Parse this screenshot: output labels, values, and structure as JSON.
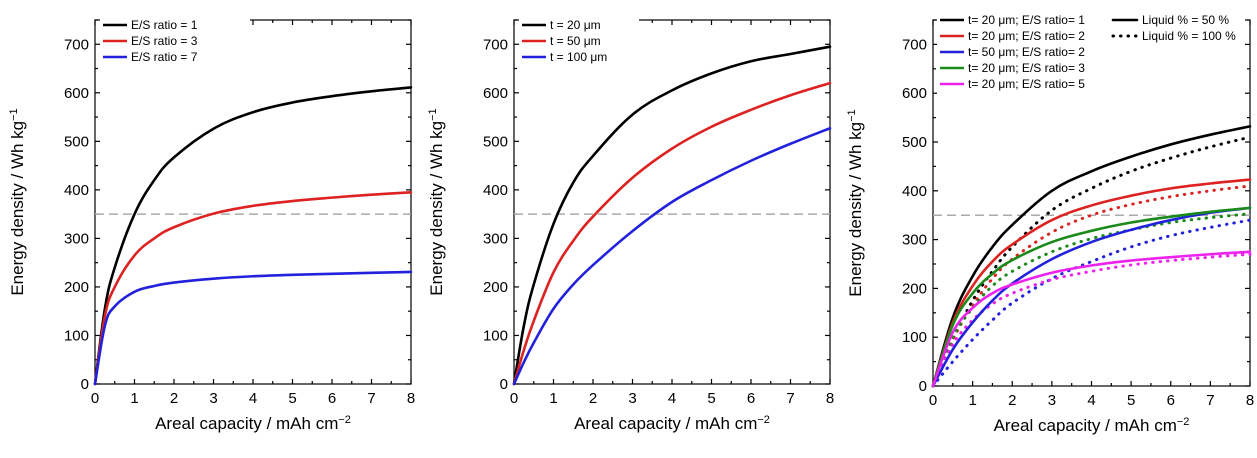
{
  "chart_data": [
    {
      "type": "line",
      "xlabel": "Areal capacity / mAh cm",
      "xlabel_sup": "−2",
      "ylabel": "Energy density / Wh kg",
      "ylabel_sup": "−1",
      "xlim": [
        0,
        8
      ],
      "ylim": [
        0,
        750
      ],
      "xticks": [
        "0",
        "1",
        "2",
        "3",
        "4",
        "5",
        "6",
        "7",
        "8"
      ],
      "yticks": [
        "0",
        "100",
        "200",
        "300",
        "400",
        "500",
        "600",
        "700"
      ],
      "reference_line": 350,
      "legend_position": "top-left",
      "series": [
        {
          "name": "E/S ratio = 1",
          "color": "#000000",
          "style": "solid",
          "x": [
            0,
            0.25,
            0.5,
            1,
            1.5,
            2,
            3,
            4,
            5,
            6,
            7,
            8
          ],
          "y": [
            0,
            155,
            240,
            350,
            420,
            467,
            526,
            560,
            580,
            593,
            603,
            611
          ]
        },
        {
          "name": "E/S ratio = 3",
          "color": "#dd2222",
          "style": "solid",
          "x": [
            0,
            0.25,
            0.5,
            1,
            1.5,
            2,
            3,
            4,
            5,
            6,
            7,
            8
          ],
          "y": [
            0,
            140,
            200,
            265,
            300,
            323,
            351,
            367,
            377,
            384,
            390,
            395
          ]
        },
        {
          "name": "E/S ratio = 7",
          "color": "#2222dd",
          "style": "solid",
          "x": [
            0,
            0.25,
            0.5,
            1,
            1.5,
            2,
            3,
            4,
            5,
            6,
            7,
            8
          ],
          "y": [
            0,
            120,
            160,
            190,
            202,
            209,
            217,
            222,
            225,
            227,
            229,
            231
          ]
        }
      ]
    },
    {
      "type": "line",
      "xlabel": "Areal capacity / mAh cm",
      "xlabel_sup": "−2",
      "ylabel": "Energy density / Wh kg",
      "ylabel_sup": "−1",
      "xlim": [
        0,
        8
      ],
      "ylim": [
        0,
        750
      ],
      "xticks": [
        "0",
        "1",
        "2",
        "3",
        "4",
        "5",
        "6",
        "7",
        "8"
      ],
      "yticks": [
        "0",
        "100",
        "200",
        "300",
        "400",
        "500",
        "600",
        "700"
      ],
      "reference_line": 350,
      "legend_position": "top-left",
      "series": [
        {
          "name": "t = 20 μm",
          "color": "#000000",
          "style": "solid",
          "x": [
            0,
            0.25,
            0.5,
            1,
            1.5,
            2,
            3,
            4,
            5,
            6,
            7,
            8
          ],
          "y": [
            0,
            120,
            205,
            330,
            415,
            470,
            555,
            605,
            640,
            665,
            680,
            695
          ]
        },
        {
          "name": "t = 50 μm",
          "color": "#dd2222",
          "style": "solid",
          "x": [
            0,
            0.25,
            0.5,
            1,
            1.5,
            2,
            3,
            4,
            5,
            6,
            7,
            8
          ],
          "y": [
            0,
            70,
            130,
            230,
            295,
            345,
            425,
            485,
            530,
            565,
            595,
            620
          ]
        },
        {
          "name": "t = 100 μm",
          "color": "#2222dd",
          "style": "solid",
          "x": [
            0,
            0.25,
            0.5,
            1,
            1.5,
            2,
            3,
            4,
            5,
            6,
            7,
            8
          ],
          "y": [
            0,
            45,
            85,
            155,
            205,
            245,
            315,
            375,
            420,
            460,
            495,
            527
          ]
        }
      ]
    },
    {
      "type": "line",
      "xlabel": "Areal capacity / mAh cm",
      "xlabel_sup": "−2",
      "ylabel": "Energy density / Wh kg",
      "ylabel_sup": "−1",
      "xlim": [
        0,
        8
      ],
      "ylim": [
        0,
        750
      ],
      "xticks": [
        "0",
        "1",
        "2",
        "3",
        "4",
        "5",
        "6",
        "7",
        "8"
      ],
      "yticks": [
        "0",
        "100",
        "200",
        "300",
        "400",
        "500",
        "600",
        "700"
      ],
      "reference_line": 350,
      "legend_position": "top-left",
      "style_legend": [
        {
          "name": "Liquid % = 50 %",
          "style": "solid"
        },
        {
          "name": "Liquid % = 100 %",
          "style": "dotted"
        }
      ],
      "series": [
        {
          "name": "t= 20 μm; E/S ratio= 1",
          "color": "#000000",
          "style": "solid",
          "x": [
            0,
            0.5,
            1,
            1.5,
            2,
            3,
            4,
            5,
            6,
            7,
            8
          ],
          "y": [
            0,
            140,
            225,
            285,
            330,
            400,
            440,
            470,
            495,
            515,
            532
          ]
        },
        {
          "name": "t= 20 μm; E/S ratio= 1 (100 %)",
          "legend": false,
          "color": "#000000",
          "style": "dotted",
          "x": [
            0,
            0.5,
            1,
            1.5,
            2,
            3,
            4,
            5,
            6,
            7,
            8
          ],
          "y": [
            0,
            95,
            175,
            235,
            285,
            360,
            405,
            440,
            467,
            490,
            510
          ]
        },
        {
          "name": "t= 20 μm; E/S ratio= 2",
          "color": "#dd2222",
          "style": "solid",
          "x": [
            0,
            0.5,
            1,
            1.5,
            2,
            3,
            4,
            5,
            6,
            7,
            8
          ],
          "y": [
            0,
            130,
            205,
            255,
            290,
            340,
            370,
            390,
            405,
            415,
            423
          ]
        },
        {
          "name": "t= 20 μm; E/S ratio= 2 (100 %)",
          "legend": false,
          "color": "#dd2222",
          "style": "dotted",
          "x": [
            0,
            0.5,
            1,
            1.5,
            2,
            3,
            4,
            5,
            6,
            7,
            8
          ],
          "y": [
            0,
            95,
            165,
            220,
            260,
            315,
            350,
            372,
            388,
            400,
            410
          ]
        },
        {
          "name": "t= 50 μm; E/S ratio= 2",
          "color": "#2222dd",
          "style": "solid",
          "x": [
            0,
            0.5,
            1,
            1.5,
            2,
            3,
            4,
            5,
            6,
            7,
            8
          ],
          "y": [
            0,
            75,
            130,
            175,
            210,
            260,
            295,
            320,
            340,
            355,
            365
          ]
        },
        {
          "name": "t= 50 μm; E/S ratio= 2 (100 %)",
          "legend": false,
          "color": "#2222dd",
          "style": "dotted",
          "x": [
            0,
            0.5,
            1,
            1.5,
            2,
            3,
            4,
            5,
            6,
            7,
            8
          ],
          "y": [
            0,
            50,
            95,
            135,
            170,
            220,
            255,
            285,
            308,
            325,
            340
          ]
        },
        {
          "name": "t= 20 μm; E/S ratio= 3",
          "color": "#1a8a1a",
          "style": "solid",
          "x": [
            0,
            0.5,
            1,
            1.5,
            2,
            3,
            4,
            5,
            6,
            7,
            8
          ],
          "y": [
            0,
            125,
            190,
            230,
            258,
            295,
            318,
            335,
            347,
            357,
            365
          ]
        },
        {
          "name": "t= 20 μm; E/S ratio= 3 (100 %)",
          "legend": false,
          "color": "#1a8a1a",
          "style": "dotted",
          "x": [
            0,
            0.5,
            1,
            1.5,
            2,
            3,
            4,
            5,
            6,
            7,
            8
          ],
          "y": [
            0,
            100,
            160,
            205,
            235,
            275,
            302,
            320,
            335,
            345,
            353
          ]
        },
        {
          "name": "t= 20 μm; E/S ratio= 5",
          "color": "#ee22ee",
          "style": "solid",
          "x": [
            0,
            0.5,
            1,
            1.5,
            2,
            3,
            4,
            5,
            6,
            7,
            8
          ],
          "y": [
            0,
            110,
            160,
            190,
            208,
            232,
            247,
            257,
            264,
            270,
            275
          ]
        },
        {
          "name": "t= 20 μm; E/S ratio= 5 (100 %)",
          "legend": false,
          "color": "#ee22ee",
          "style": "dotted",
          "x": [
            0,
            0.5,
            1,
            1.5,
            2,
            3,
            4,
            5,
            6,
            7,
            8
          ],
          "y": [
            0,
            85,
            135,
            168,
            190,
            218,
            235,
            248,
            257,
            264,
            270
          ]
        }
      ]
    }
  ]
}
